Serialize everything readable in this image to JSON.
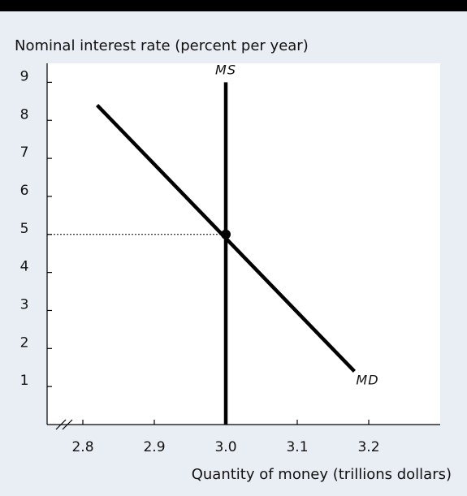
{
  "chart_data": {
    "type": "line",
    "ylabel": "Nominal interest rate (percent per year)",
    "xlabel": "Quantity of money (trillions dollars)",
    "xlim": [
      2.75,
      3.3
    ],
    "ylim": [
      0,
      9.5
    ],
    "x_ticks": [
      2.8,
      2.9,
      3.0,
      3.1,
      3.2
    ],
    "x_tick_labels": [
      "2.8",
      "2.9",
      "3.0",
      "3.1",
      "3.2"
    ],
    "y_ticks": [
      1,
      2,
      3,
      4,
      5,
      6,
      7,
      8,
      9
    ],
    "y_tick_labels": [
      "1",
      "2",
      "3",
      "4",
      "5",
      "6",
      "7",
      "8",
      "9"
    ],
    "x_axis_break": true,
    "series": [
      {
        "name": "MS",
        "x": [
          3.0,
          3.0
        ],
        "y": [
          0,
          9
        ]
      },
      {
        "name": "MD",
        "x": [
          2.82,
          3.18
        ],
        "y": [
          8.4,
          1.4
        ]
      }
    ],
    "equilibrium": {
      "x": 3.0,
      "y": 5
    },
    "grid": false,
    "colors": {
      "background": "#e9eef5",
      "line": "#000000",
      "guide": "#000000",
      "top_bar": "#000000"
    }
  }
}
